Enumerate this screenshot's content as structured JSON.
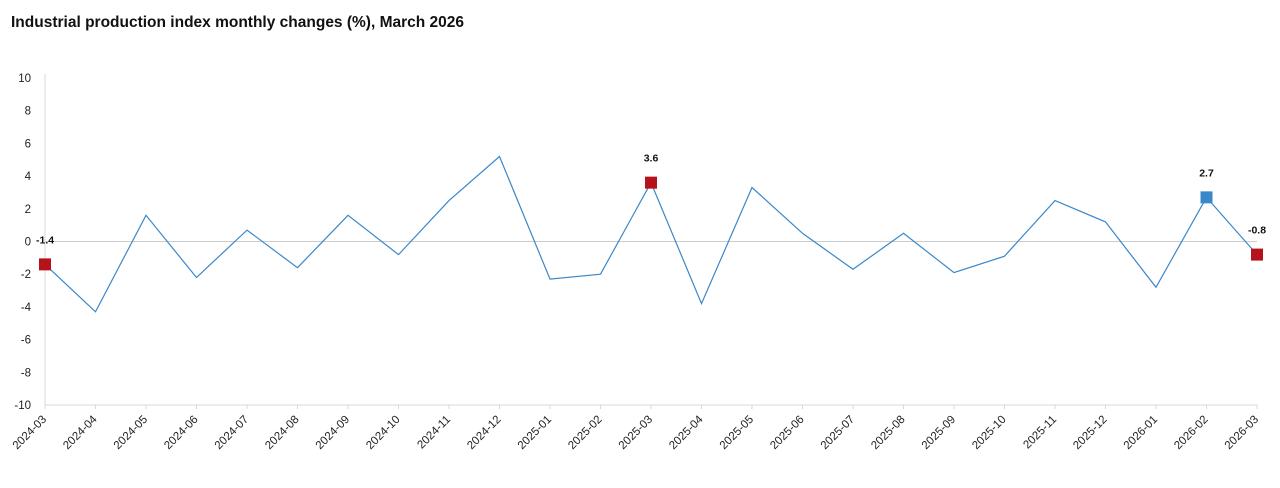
{
  "title": "Industrial production index monthly changes (%), March 2026",
  "colors": {
    "line": "#3a87c9",
    "highlight_red": "#b5121b",
    "highlight_blue": "#3a87c9",
    "zero_line": "#cccccc",
    "axis": "#d9d9d9"
  },
  "chart_data": {
    "type": "line",
    "title": "Industrial production index monthly changes (%), March 2026",
    "xlabel": "",
    "ylabel": "",
    "ylim": [
      -10,
      10
    ],
    "yticks": [
      10,
      8,
      6,
      4,
      2,
      0,
      -2,
      -4,
      -6,
      -8,
      -10
    ],
    "grid": false,
    "categories": [
      "2024-03",
      "2024-04",
      "2024-05",
      "2024-06",
      "2024-07",
      "2024-08",
      "2024-09",
      "2024-10",
      "2024-11",
      "2024-12",
      "2025-01",
      "2025-02",
      "2025-03",
      "2025-04",
      "2025-05",
      "2025-06",
      "2025-07",
      "2025-08",
      "2025-09",
      "2025-10",
      "2025-11",
      "2025-12",
      "2026-01",
      "2026-02",
      "2026-03"
    ],
    "series": [
      {
        "values": [
          -1.4,
          -4.3,
          1.6,
          -2.2,
          0.7,
          -1.6,
          1.6,
          -0.8,
          2.5,
          5.2,
          -2.3,
          -2.0,
          3.6,
          -3.8,
          3.3,
          0.5,
          -1.7,
          0.5,
          -1.9,
          -0.9,
          2.5,
          1.2,
          -2.8,
          2.7,
          -0.8
        ]
      }
    ],
    "highlighted_points": [
      {
        "category": "2024-03",
        "value": -1.4,
        "label": "-1.4",
        "color": "red"
      },
      {
        "category": "2025-03",
        "value": 3.6,
        "label": "3.6",
        "color": "red"
      },
      {
        "category": "2026-02",
        "value": 2.7,
        "label": "2.7",
        "color": "blue"
      },
      {
        "category": "2026-03",
        "value": -0.8,
        "label": "-0.8",
        "color": "red"
      }
    ]
  }
}
